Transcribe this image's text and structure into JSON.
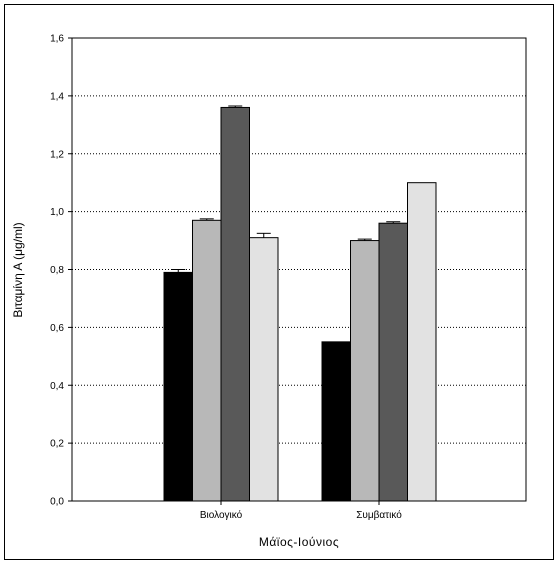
{
  "chart_data": {
    "type": "bar",
    "title": "",
    "xlabel": "Μάϊος-Ιούνιος",
    "ylabel": "Βιταμίνη Α (μg/ml)",
    "ylim": [
      0,
      1.6
    ],
    "yticks": [
      "0,0",
      "0,2",
      "0,4",
      "0,6",
      "0,8",
      "1,0",
      "1,2",
      "1,4",
      "1,6"
    ],
    "categories": [
      "Βιολογικό",
      "Συμβατικό"
    ],
    "grid": true,
    "legend": "none",
    "series": [
      {
        "color": "#000000",
        "values": [
          0.79,
          0.55
        ],
        "errors": [
          0.01,
          0
        ]
      },
      {
        "color": "#b8b8b8",
        "values": [
          0.97,
          0.9
        ],
        "errors": [
          0.005,
          0.005
        ]
      },
      {
        "color": "#595959",
        "values": [
          1.36,
          0.96
        ],
        "errors": [
          0.005,
          0.005
        ]
      },
      {
        "color": "#e2e2e2",
        "values": [
          0.91,
          1.1
        ],
        "errors": [
          0.015,
          0
        ]
      }
    ]
  }
}
